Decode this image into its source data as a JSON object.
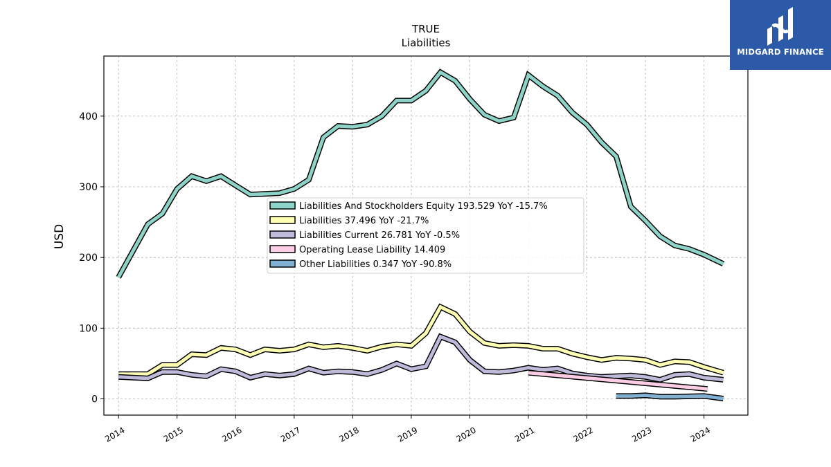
{
  "brand": {
    "name": "MIDGARD FINANCE",
    "bg_color": "#2d5aa8"
  },
  "chart_data": {
    "type": "line",
    "title": "TRUE",
    "subtitle": "Liabilities",
    "xlabel": "",
    "ylabel": "USD",
    "xlim": [
      2013.75,
      2024.75
    ],
    "ylim": [
      -23,
      485
    ],
    "x_ticks": [
      "2014",
      "2015",
      "2016",
      "2017",
      "2018",
      "2019",
      "2020",
      "2021",
      "2022",
      "2023",
      "2024"
    ],
    "y_ticks": [
      "0",
      "100",
      "200",
      "300",
      "400"
    ],
    "grid": true,
    "legend_position": "center",
    "series": [
      {
        "name": "Liabilities And Stockholders Equity  193.529 YoY -15.7%",
        "color": "#8dd3c7",
        "x": [
          2014.0,
          2014.5,
          2014.75,
          2015.0,
          2015.25,
          2015.5,
          2015.75,
          2016.0,
          2016.25,
          2016.5,
          2016.75,
          2017.0,
          2017.25,
          2017.5,
          2017.75,
          2018.0,
          2018.25,
          2018.5,
          2018.75,
          2019.0,
          2019.25,
          2019.5,
          2019.75,
          2020.0,
          2020.25,
          2020.5,
          2020.75,
          2021.0,
          2021.25,
          2021.5,
          2021.75,
          2022.0,
          2022.25,
          2022.5,
          2022.75,
          2023.0,
          2023.25,
          2023.5,
          2023.75,
          2024.0,
          2024.33
        ],
        "values": [
          172,
          247,
          262,
          297,
          315,
          308,
          315,
          302,
          289,
          290,
          291,
          297,
          310,
          370,
          386,
          385,
          388,
          400,
          422,
          422,
          436,
          462,
          450,
          424,
          402,
          393,
          398,
          458,
          442,
          429,
          405,
          388,
          363,
          343,
          272,
          252,
          230,
          217,
          212,
          204,
          191
        ]
      },
      {
        "name": "Liabilities  37.496 YoY -21.7%",
        "color": "#ffffb3",
        "x": [
          2014.0,
          2014.5,
          2014.75,
          2015.0,
          2015.25,
          2015.5,
          2015.75,
          2016.0,
          2016.25,
          2016.5,
          2016.75,
          2017.0,
          2017.25,
          2017.5,
          2017.75,
          2018.0,
          2018.25,
          2018.5,
          2018.75,
          2019.0,
          2019.25,
          2019.5,
          2019.75,
          2020.0,
          2020.25,
          2020.5,
          2020.75,
          2021.0,
          2021.25,
          2021.5,
          2021.75,
          2022.0,
          2022.25,
          2022.5,
          2022.75,
          2023.0,
          2023.25,
          2023.5,
          2023.75,
          2024.0,
          2024.33
        ],
        "values": [
          35,
          35,
          48,
          48,
          63,
          62,
          72,
          70,
          62,
          70,
          68,
          70,
          77,
          73,
          75,
          72,
          68,
          74,
          77,
          75,
          93,
          130,
          120,
          95,
          79,
          75,
          76,
          75,
          71,
          71,
          64,
          59,
          55,
          58,
          57,
          55,
          48,
          53,
          52,
          45,
          37
        ]
      },
      {
        "name": "Liabilities Current  26.781 YoY -0.5%",
        "color": "#bebada",
        "x": [
          2014.0,
          2014.5,
          2014.75,
          2015.0,
          2015.25,
          2015.5,
          2015.75,
          2016.0,
          2016.25,
          2016.5,
          2016.75,
          2017.0,
          2017.25,
          2017.5,
          2017.75,
          2018.0,
          2018.25,
          2018.5,
          2018.75,
          2019.0,
          2019.25,
          2019.5,
          2019.75,
          2020.0,
          2020.25,
          2020.5,
          2020.75,
          2021.0,
          2021.25,
          2021.5,
          2021.75,
          2022.0,
          2022.25,
          2022.5,
          2022.75,
          2023.0,
          2023.25,
          2023.5,
          2023.75,
          2024.0,
          2024.33
        ],
        "values": [
          31,
          29,
          38,
          38,
          34,
          32,
          42,
          39,
          30,
          35,
          33,
          35,
          43,
          37,
          39,
          38,
          35,
          41,
          50,
          42,
          46,
          88,
          80,
          55,
          39,
          38,
          40,
          44,
          41,
          43,
          36,
          33,
          31,
          32,
          33,
          31,
          27,
          34,
          35,
          30,
          27
        ]
      },
      {
        "name": "Operating Lease Liability  14.409",
        "color": "#fccde5",
        "x": [
          2021.0,
          2024.06
        ],
        "values": [
          37,
          14
        ]
      },
      {
        "name": "Other Liabilities  0.347 YoY -90.8%",
        "color": "#80b1d3",
        "x": [
          2022.5,
          2022.75,
          2023.0,
          2023.25,
          2023.5,
          2023.75,
          2024.0,
          2024.33
        ],
        "values": [
          4,
          4,
          5,
          3,
          3,
          3.5,
          4,
          0.35
        ]
      }
    ]
  }
}
